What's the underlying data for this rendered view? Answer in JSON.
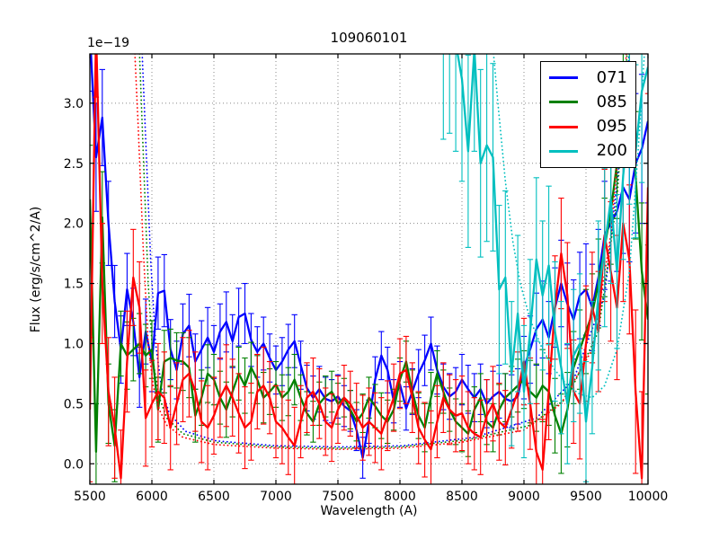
{
  "figure": {
    "title": "109060101",
    "xlabel": "Wavelength (A)",
    "ylabel": "Flux (erg/s/cm^2/A)",
    "offset_label": "1e−19",
    "background_color": "#ffffff",
    "grid_color": "#888888",
    "frame_color": "#000000"
  },
  "legend": {
    "position": "upper right",
    "items": [
      {
        "label": "071",
        "color": "#0000ff"
      },
      {
        "label": "085",
        "color": "#008000"
      },
      {
        "label": "095",
        "color": "#ff0000"
      },
      {
        "label": "200",
        "color": "#00bfbf"
      }
    ]
  },
  "chart_data": {
    "type": "line",
    "title": "109060101",
    "xlabel": "Wavelength (A)",
    "ylabel": "Flux (erg/s/cm^2/A)",
    "y_scale_offset": "1e−19",
    "xlim": [
      5500,
      10000
    ],
    "ylim": [
      -0.17,
      3.41
    ],
    "x_ticks": [
      5500,
      6000,
      6500,
      7000,
      7500,
      8000,
      8500,
      9000,
      9500,
      10000
    ],
    "x_tick_labels": [
      "5500",
      "6000",
      "6500",
      "7000",
      "7500",
      "8000",
      "8500",
      "9000",
      "9500",
      "10000"
    ],
    "y_ticks": [
      0.0,
      0.5,
      1.0,
      1.5,
      2.0,
      2.5,
      3.0
    ],
    "y_tick_labels": [
      "0.0",
      "0.5",
      "1.0",
      "1.5",
      "2.0",
      "2.5",
      "3.0"
    ],
    "grid": true,
    "legend_position": "upper right",
    "x_start": 5500,
    "x_step": 50,
    "series": [
      {
        "name": "071",
        "color": "#0000ff",
        "values": [
          3.6,
          2.55,
          2.88,
          2.0,
          1.35,
          0.95,
          1.45,
          1.18,
          0.72,
          1.1,
          0.85,
          1.42,
          1.44,
          0.95,
          0.78,
          1.08,
          1.15,
          0.85,
          0.95,
          1.05,
          0.93,
          1.1,
          1.18,
          1.02,
          1.22,
          1.25,
          1.03,
          0.93,
          1.0,
          0.88,
          0.78,
          0.85,
          0.95,
          1.02,
          0.82,
          0.63,
          0.55,
          0.62,
          0.54,
          0.52,
          0.56,
          0.48,
          0.44,
          0.28,
          0.05,
          0.35,
          0.7,
          0.9,
          0.78,
          0.52,
          0.66,
          0.46,
          0.6,
          0.75,
          0.86,
          1.0,
          0.78,
          0.64,
          0.56,
          0.6,
          0.7,
          0.62,
          0.55,
          0.62,
          0.5,
          0.56,
          0.6,
          0.54,
          0.52,
          0.56,
          0.8,
          0.95,
          1.12,
          1.2,
          1.05,
          1.3,
          1.5,
          1.33,
          1.2,
          1.4,
          1.45,
          1.3,
          1.55,
          1.9,
          2.0,
          2.1,
          2.3,
          2.2,
          2.5,
          2.62,
          2.85
        ],
        "errors": [
          0.5,
          0.45,
          0.4,
          0.35,
          0.3,
          0.28,
          0.3,
          0.28,
          0.25,
          0.27,
          0.25,
          0.3,
          0.3,
          0.25,
          0.24,
          0.25,
          0.26,
          0.23,
          0.24,
          0.25,
          0.22,
          0.23,
          0.25,
          0.22,
          0.24,
          0.25,
          0.22,
          0.21,
          0.22,
          0.2,
          0.2,
          0.2,
          0.21,
          0.22,
          0.2,
          0.19,
          0.18,
          0.19,
          0.18,
          0.18,
          0.18,
          0.17,
          0.17,
          0.17,
          0.17,
          0.18,
          0.19,
          0.2,
          0.19,
          0.18,
          0.19,
          0.18,
          0.19,
          0.2,
          0.21,
          0.22,
          0.2,
          0.19,
          0.19,
          0.2,
          0.21,
          0.2,
          0.2,
          0.21,
          0.2,
          0.21,
          0.22,
          0.21,
          0.22,
          0.23,
          0.26,
          0.28,
          0.3,
          0.32,
          0.3,
          0.33,
          0.36,
          0.34,
          0.33,
          0.36,
          0.38,
          0.36,
          0.4,
          0.45,
          0.48,
          0.5,
          0.55,
          0.52,
          0.58,
          0.62,
          0.68
        ]
      },
      {
        "name": "085",
        "color": "#008000",
        "values": [
          2.2,
          0.1,
          2.05,
          0.5,
          0.15,
          1.0,
          0.9,
          0.95,
          1.0,
          0.9,
          0.95,
          0.45,
          0.85,
          0.88,
          0.86,
          0.85,
          0.8,
          0.4,
          0.55,
          0.75,
          0.7,
          0.55,
          0.45,
          0.6,
          0.75,
          0.65,
          0.8,
          0.7,
          0.55,
          0.6,
          0.66,
          0.55,
          0.6,
          0.7,
          0.55,
          0.42,
          0.35,
          0.5,
          0.56,
          0.6,
          0.5,
          0.55,
          0.45,
          0.35,
          0.42,
          0.55,
          0.48,
          0.4,
          0.35,
          0.45,
          0.7,
          0.85,
          0.6,
          0.4,
          0.3,
          0.55,
          0.75,
          0.6,
          0.45,
          0.35,
          0.3,
          0.25,
          0.45,
          0.55,
          0.35,
          0.3,
          0.45,
          0.55,
          0.6,
          0.65,
          0.7,
          0.6,
          0.55,
          0.65,
          0.6,
          0.4,
          0.25,
          0.45,
          0.8,
          0.95,
          1.1,
          1.25,
          1.5,
          1.8,
          2.1,
          2.5,
          3.0,
          3.3,
          2.4,
          1.6,
          1.2
        ],
        "errors": [
          0.45,
          0.4,
          0.38,
          0.33,
          0.3,
          0.27,
          0.28,
          0.26,
          0.25,
          0.26,
          0.24,
          0.27,
          0.26,
          0.24,
          0.23,
          0.24,
          0.25,
          0.22,
          0.23,
          0.24,
          0.21,
          0.22,
          0.23,
          0.21,
          0.22,
          0.23,
          0.21,
          0.2,
          0.21,
          0.19,
          0.19,
          0.19,
          0.2,
          0.21,
          0.19,
          0.18,
          0.17,
          0.18,
          0.17,
          0.17,
          0.17,
          0.16,
          0.16,
          0.16,
          0.16,
          0.17,
          0.18,
          0.19,
          0.18,
          0.17,
          0.18,
          0.17,
          0.18,
          0.19,
          0.2,
          0.21,
          0.19,
          0.18,
          0.18,
          0.19,
          0.2,
          0.19,
          0.19,
          0.2,
          0.19,
          0.2,
          0.21,
          0.2,
          0.21,
          0.22,
          0.24,
          0.26,
          0.28,
          0.3,
          0.28,
          0.31,
          0.33,
          0.31,
          0.3,
          0.33,
          0.35,
          0.33,
          0.37,
          0.41,
          0.44,
          0.46,
          0.5,
          0.48,
          0.53,
          0.57,
          0.62
        ]
      },
      {
        "name": "095",
        "color": "#ff0000",
        "values": [
          0.45,
          3.6,
          1.5,
          0.6,
          0.3,
          -0.12,
          0.85,
          1.55,
          1.3,
          0.38,
          0.5,
          0.6,
          0.55,
          0.3,
          0.5,
          0.7,
          0.75,
          0.6,
          0.35,
          0.3,
          0.4,
          0.55,
          0.65,
          0.55,
          0.42,
          0.3,
          0.35,
          0.6,
          0.65,
          0.55,
          0.35,
          0.3,
          0.22,
          0.15,
          0.35,
          0.55,
          0.6,
          0.5,
          0.35,
          0.3,
          0.45,
          0.55,
          0.5,
          0.4,
          0.3,
          0.35,
          0.3,
          0.25,
          0.4,
          0.55,
          0.75,
          0.78,
          0.55,
          0.3,
          0.2,
          0.12,
          0.35,
          0.55,
          0.45,
          0.4,
          0.42,
          0.3,
          0.25,
          0.22,
          0.4,
          0.5,
          0.35,
          0.3,
          0.45,
          0.6,
          0.85,
          0.5,
          0.1,
          -0.05,
          0.6,
          1.3,
          1.75,
          1.4,
          0.6,
          0.5,
          1.0,
          1.3,
          1.1,
          1.9,
          1.6,
          1.3,
          2.0,
          1.7,
          0.6,
          -0.12,
          2.3
        ],
        "errors": [
          0.6,
          0.55,
          0.5,
          0.45,
          0.42,
          0.4,
          0.42,
          0.4,
          0.38,
          0.4,
          0.36,
          0.4,
          0.38,
          0.35,
          0.34,
          0.35,
          0.36,
          0.33,
          0.34,
          0.35,
          0.32,
          0.33,
          0.34,
          0.32,
          0.33,
          0.34,
          0.32,
          0.31,
          0.32,
          0.3,
          0.3,
          0.3,
          0.31,
          0.32,
          0.3,
          0.29,
          0.28,
          0.29,
          0.28,
          0.28,
          0.28,
          0.27,
          0.27,
          0.27,
          0.27,
          0.28,
          0.29,
          0.3,
          0.29,
          0.28,
          0.29,
          0.28,
          0.29,
          0.3,
          0.31,
          0.32,
          0.3,
          0.29,
          0.29,
          0.3,
          0.31,
          0.3,
          0.3,
          0.31,
          0.3,
          0.31,
          0.32,
          0.31,
          0.32,
          0.33,
          0.36,
          0.38,
          0.4,
          0.42,
          0.4,
          0.43,
          0.46,
          0.44,
          0.43,
          0.46,
          0.48,
          0.46,
          0.5,
          0.55,
          0.58,
          0.6,
          0.65,
          0.62,
          0.68,
          0.72,
          0.78
        ]
      },
      {
        "name": "200",
        "color": "#00bfbf",
        "values": [
          null,
          null,
          null,
          null,
          null,
          null,
          null,
          null,
          null,
          null,
          null,
          null,
          null,
          null,
          null,
          null,
          null,
          null,
          null,
          null,
          null,
          null,
          null,
          null,
          null,
          null,
          null,
          null,
          null,
          null,
          null,
          null,
          null,
          null,
          null,
          null,
          null,
          null,
          null,
          null,
          null,
          null,
          null,
          null,
          null,
          null,
          null,
          null,
          null,
          null,
          null,
          null,
          null,
          null,
          null,
          null,
          null,
          3.6,
          3.7,
          3.5,
          3.2,
          2.6,
          3.45,
          2.5,
          2.65,
          2.55,
          1.45,
          1.55,
          0.75,
          1.25,
          0.6,
          1.1,
          1.7,
          1.4,
          1.65,
          1.1,
          0.8,
          0.5,
          0.9,
          1.0,
          0.35,
          0.8,
          1.4,
          1.8,
          2.2,
          1.6,
          2.4,
          2.9,
          2.6,
          3.1,
          3.3
        ],
        "errors": [
          null,
          null,
          null,
          null,
          null,
          null,
          null,
          null,
          null,
          null,
          null,
          null,
          null,
          null,
          null,
          null,
          null,
          null,
          null,
          null,
          null,
          null,
          null,
          null,
          null,
          null,
          null,
          null,
          null,
          null,
          null,
          null,
          null,
          null,
          null,
          null,
          null,
          null,
          null,
          null,
          null,
          null,
          null,
          null,
          null,
          null,
          null,
          null,
          null,
          null,
          null,
          null,
          null,
          null,
          null,
          null,
          null,
          0.9,
          0.95,
          0.9,
          0.85,
          0.8,
          0.85,
          0.78,
          0.8,
          0.78,
          0.7,
          0.72,
          0.6,
          0.65,
          0.55,
          0.6,
          0.68,
          0.62,
          0.66,
          0.58,
          0.55,
          0.5,
          0.55,
          0.58,
          0.5,
          0.55,
          0.62,
          0.66,
          0.7,
          0.64,
          0.7,
          0.74,
          0.72,
          0.76,
          0.8
        ]
      }
    ],
    "dotted_series": [
      {
        "name": "071-noise",
        "color": "#0000ff",
        "points": [
          [
            5910,
            3.7
          ],
          [
            5950,
            2.7
          ],
          [
            5990,
            1.7
          ],
          [
            6030,
            1.0
          ],
          [
            6080,
            0.62
          ],
          [
            6140,
            0.42
          ],
          [
            6270,
            0.27
          ],
          [
            6520,
            0.19
          ],
          [
            7000,
            0.15
          ],
          [
            7520,
            0.14
          ],
          [
            8020,
            0.15
          ],
          [
            8600,
            0.22
          ],
          [
            9100,
            0.38
          ],
          [
            9400,
            0.7
          ],
          [
            9650,
            1.4
          ],
          [
            9800,
            2.8
          ],
          [
            9870,
            3.7
          ]
        ]
      },
      {
        "name": "085-noise",
        "color": "#008000",
        "points": [
          [
            5890,
            3.7
          ],
          [
            5930,
            2.6
          ],
          [
            5970,
            1.5
          ],
          [
            6010,
            0.85
          ],
          [
            6060,
            0.55
          ],
          [
            6120,
            0.38
          ],
          [
            6250,
            0.25
          ],
          [
            6500,
            0.18
          ],
          [
            7000,
            0.14
          ],
          [
            7500,
            0.13
          ],
          [
            8000,
            0.14
          ],
          [
            8550,
            0.2
          ],
          [
            9050,
            0.32
          ],
          [
            9350,
            0.55
          ],
          [
            9600,
            1.1
          ],
          [
            9750,
            2.2
          ],
          [
            9850,
            3.7
          ]
        ]
      },
      {
        "name": "095-noise",
        "color": "#ff0000",
        "points": [
          [
            5850,
            3.7
          ],
          [
            5890,
            2.8
          ],
          [
            5930,
            1.8
          ],
          [
            5970,
            1.0
          ],
          [
            6010,
            0.65
          ],
          [
            6060,
            0.45
          ],
          [
            6120,
            0.32
          ],
          [
            6250,
            0.22
          ],
          [
            6500,
            0.16
          ],
          [
            7000,
            0.13
          ],
          [
            7500,
            0.12
          ],
          [
            8000,
            0.13
          ],
          [
            8500,
            0.18
          ],
          [
            9000,
            0.28
          ],
          [
            9300,
            0.5
          ],
          [
            9550,
            0.95
          ],
          [
            9700,
            1.9
          ],
          [
            9800,
            3.1
          ],
          [
            9850,
            3.7
          ]
        ]
      },
      {
        "name": "200-noise",
        "color": "#00bfbf",
        "points": [
          [
            8730,
            3.7
          ],
          [
            8790,
            3.0
          ],
          [
            8850,
            2.35
          ],
          [
            8910,
            1.85
          ],
          [
            8970,
            1.5
          ],
          [
            9050,
            1.2
          ],
          [
            9150,
            0.95
          ],
          [
            9250,
            0.78
          ],
          [
            9350,
            0.65
          ],
          [
            9450,
            0.58
          ],
          [
            9550,
            0.55
          ],
          [
            9650,
            0.65
          ],
          [
            9750,
            0.95
          ],
          [
            9850,
            1.6
          ],
          [
            9920,
            2.6
          ],
          [
            9970,
            3.4
          ],
          [
            10000,
            3.7
          ]
        ]
      }
    ]
  }
}
